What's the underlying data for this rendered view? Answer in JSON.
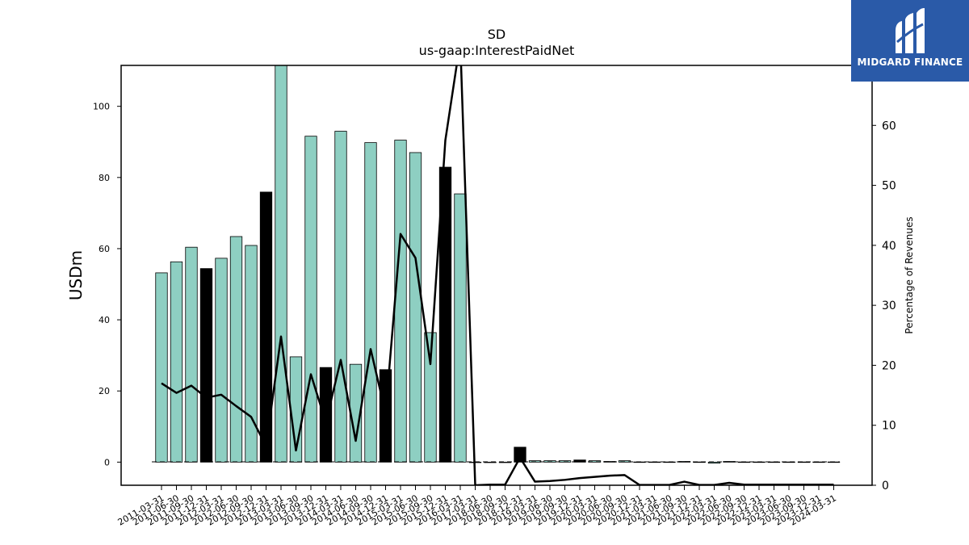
{
  "chart_data": {
    "type": "bar",
    "title": "SD",
    "subtitle": "us-gaap:InterestPaidNet",
    "ylabel": "USDm",
    "y2label": "Percentage of Revenues",
    "ylim": [
      -6.5,
      111.5
    ],
    "y2lim": [
      0,
      70
    ],
    "yticks": [
      0,
      20,
      40,
      60,
      80,
      100
    ],
    "y2ticks": [
      0,
      10,
      20,
      30,
      40,
      50,
      60
    ],
    "categories": [
      "2011-03-31",
      "2011-06-30",
      "2011-09-30",
      "2011-12-31",
      "2012-03-31",
      "2012-06-30",
      "2012-09-30",
      "2012-12-31",
      "2013-03-31",
      "2013-06-30",
      "2013-09-30",
      "2013-12-31",
      "2014-03-31",
      "2014-06-30",
      "2014-09-30",
      "2014-12-31",
      "2015-03-31",
      "2015-06-30",
      "2015-09-30",
      "2015-12-31",
      "2016-03-31",
      "2017-03-31",
      "2018-06-30",
      "2018-09-30",
      "2018-12-31",
      "2019-03-31",
      "2019-06-30",
      "2019-09-30",
      "2019-12-31",
      "2020-03-31",
      "2020-06-30",
      "2020-09-30",
      "2020-12-31",
      "2021-03-31",
      "2021-06-30",
      "2021-09-30",
      "2021-12-31",
      "2022-03-31",
      "2022-06-30",
      "2022-09-30",
      "2022-12-31",
      "2023-03-31",
      "2023-06-30",
      "2023-09-30",
      "2023-12-31",
      "2024-03-31"
    ],
    "series": [
      {
        "name": "",
        "axis": "left",
        "values": [
          53.2,
          56.3,
          60.4,
          54.4,
          57.3,
          63.4,
          60.9,
          75.9,
          111.5,
          29.6,
          91.6,
          26.6,
          93.0,
          27.5,
          89.8,
          26.0,
          90.5,
          87.0,
          36.4,
          82.9,
          75.4,
          0,
          0,
          0,
          4.2,
          0.4,
          0.4,
          0.4,
          0.6,
          0.4,
          0.2,
          0.4,
          0.05,
          0.05,
          0.05,
          0.2,
          0.05,
          -0.3,
          0.2,
          0.05,
          0.05,
          0.05,
          0.05,
          0.05,
          0.05,
          0.05
        ],
        "bar_colors": [
          "#8ecfc2",
          "#8ecfc2",
          "#8ecfc2",
          "#000000",
          "#8ecfc2",
          "#8ecfc2",
          "#8ecfc2",
          "#000000",
          "#8ecfc2",
          "#8ecfc2",
          "#8ecfc2",
          "#000000",
          "#8ecfc2",
          "#8ecfc2",
          "#8ecfc2",
          "#000000",
          "#8ecfc2",
          "#8ecfc2",
          "#8ecfc2",
          "#000000",
          "#8ecfc2",
          "#8ecfc2",
          "#8ecfc2",
          "#8ecfc2",
          "#000000",
          "#8ecfc2",
          "#8ecfc2",
          "#8ecfc2",
          "#000000",
          "#8ecfc2",
          "#8ecfc2",
          "#8ecfc2",
          "#000000",
          "#8ecfc2",
          "#8ecfc2",
          "#8ecfc2",
          "#000000",
          "#8ecfc2",
          "#8ecfc2",
          "#8ecfc2",
          "#000000",
          "#8ecfc2",
          "#8ecfc2",
          "#8ecfc2",
          "#000000",
          "#8ecfc2"
        ]
      },
      {
        "name": "",
        "axis": "right",
        "type": "line",
        "color": "#000000",
        "values": [
          17.0,
          15.4,
          16.6,
          14.6,
          15.1,
          13.2,
          11.4,
          6.5,
          24.8,
          5.8,
          18.5,
          10.5,
          20.9,
          7.4,
          22.7,
          12.0,
          41.9,
          37.9,
          20.2,
          57.5,
          74.0,
          0,
          0.1,
          0.1,
          4.6,
          0.6,
          0.7,
          0.9,
          1.2,
          1.4,
          1.6,
          1.7,
          0.05,
          0.05,
          0.05,
          0.6,
          0.05,
          0.05,
          0.4,
          0.1,
          0.1,
          0.1,
          0.1,
          0.1,
          0.1,
          0.1
        ]
      }
    ],
    "grid": false,
    "legend": "none"
  },
  "logo": {
    "text": "MIDGARD FINANCE",
    "bg_color": "#2a5aa8"
  }
}
